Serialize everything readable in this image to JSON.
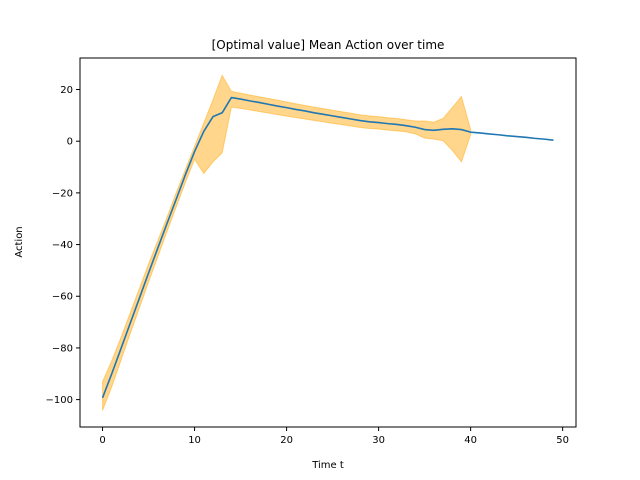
{
  "chart_data": {
    "type": "line",
    "title": "[Optimal value] Mean Action over time",
    "xlabel": "Time t",
    "ylabel": "Action",
    "xlim": [
      -2.45,
      51.45
    ],
    "ylim": [
      -110.6,
      32.2
    ],
    "xticks": [
      0,
      10,
      20,
      30,
      40,
      50
    ],
    "yticks": [
      -100,
      -80,
      -60,
      -40,
      -20,
      0,
      20
    ],
    "grid": false,
    "legend": "none",
    "line_color": "#1f77b4",
    "band_color": "#ffa500",
    "series": [
      {
        "x": [
          0,
          1,
          2,
          3,
          4,
          5,
          6,
          7,
          8,
          9,
          10,
          11,
          12,
          13,
          14,
          15,
          16,
          17,
          18,
          19,
          20,
          21,
          22,
          23,
          24,
          25,
          26,
          27,
          28,
          29,
          30,
          31,
          32,
          33,
          34,
          35,
          36,
          37,
          38,
          39,
          40,
          41,
          42,
          43,
          44,
          45,
          46,
          47,
          48,
          49
        ],
        "mean": [
          -99.3,
          -90,
          -80.3,
          -70.5,
          -60.8,
          -51,
          -41.4,
          -31.9,
          -22.5,
          -13,
          -4,
          3.8,
          9.5,
          11,
          16.9,
          16.3,
          15.6,
          15,
          14.3,
          13.6,
          13,
          12.3,
          11.7,
          11,
          10.4,
          9.8,
          9.2,
          8.6,
          8,
          7.5,
          7.2,
          6.8,
          6.5,
          6,
          5.4,
          4.5,
          4.2,
          4.6,
          4.8,
          4.5,
          3.5,
          3.2,
          2.8,
          2.5,
          2.1,
          1.8,
          1.5,
          1.1,
          0.8,
          0.4
        ],
        "upper": [
          -93,
          -85,
          -76,
          -66.5,
          -57,
          -47.5,
          -38.5,
          -29.5,
          -20,
          -11,
          -2,
          7,
          16,
          25.5,
          19.3,
          18.6,
          17.9,
          17.2,
          16.6,
          15.9,
          15.2,
          14.5,
          13.8,
          13.2,
          12.6,
          12,
          11.4,
          10.8,
          10.2,
          9.8,
          9.5,
          9.1,
          8.8,
          8.3,
          7.8,
          7.8,
          7.4,
          8.8,
          13,
          17.3,
          4.5,
          null,
          null,
          null,
          null,
          null,
          null,
          null,
          null,
          null
        ],
        "lower": [
          -104.2,
          -95,
          -84.8,
          -74.5,
          -64.6,
          -54.5,
          -44.8,
          -35,
          -25.5,
          -16,
          -7,
          -12.5,
          -8,
          -4.5,
          13.2,
          12.7,
          12.1,
          11.5,
          10.9,
          10.3,
          9.7,
          9.1,
          8.6,
          8,
          7.5,
          6.9,
          6.4,
          5.9,
          5.3,
          4.9,
          4.7,
          4.3,
          4,
          3.6,
          2.8,
          1.2,
          0.8,
          0.2,
          -3.5,
          -8,
          2.5,
          null,
          null,
          null,
          null,
          null,
          null,
          null,
          null,
          null
        ]
      }
    ]
  }
}
